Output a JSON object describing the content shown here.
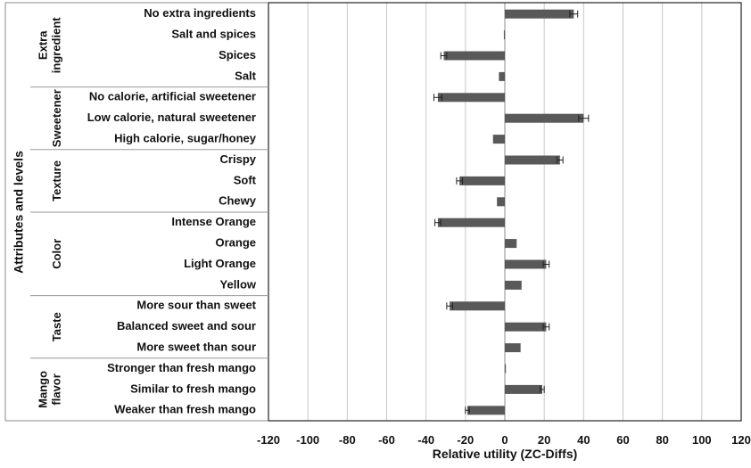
{
  "chart_data": {
    "type": "bar",
    "orientation": "horizontal",
    "xlabel": "Relative utility (ZC-Diffs)",
    "ylabel": "Attributes and levels",
    "xlim": [
      -120,
      120
    ],
    "xticks": [
      -120,
      -100,
      -80,
      -60,
      -40,
      -20,
      0,
      20,
      40,
      60,
      80,
      100,
      120
    ],
    "grid": true,
    "legend": "none",
    "bar_color": "#595959",
    "groups": [
      {
        "name": [
          "Extra",
          "ingredient"
        ],
        "levels": [
          {
            "label": "No extra ingredients",
            "value": 35,
            "err": 2
          },
          {
            "label": "Salt and spices",
            "value": -0.5,
            "err": 0
          },
          {
            "label": "Spices",
            "value": -31,
            "err": 1.5
          },
          {
            "label": "Salt",
            "value": -3,
            "err": 0
          }
        ]
      },
      {
        "name": [
          "Sweetener"
        ],
        "levels": [
          {
            "label": "No calorie, artificial sweetener",
            "value": -34,
            "err": 2
          },
          {
            "label": "Low calorie, natural sweetener",
            "value": 40,
            "err": 2.5
          },
          {
            "label": "High calorie, sugar/honey",
            "value": -6,
            "err": 0
          }
        ]
      },
      {
        "name": [
          "Texture"
        ],
        "levels": [
          {
            "label": "Crispy",
            "value": 28,
            "err": 1.5
          },
          {
            "label": "Soft",
            "value": -23,
            "err": 1.5
          },
          {
            "label": "Chewy",
            "value": -4,
            "err": 0
          }
        ]
      },
      {
        "name": [
          "Color"
        ],
        "levels": [
          {
            "label": "Intense Orange",
            "value": -34,
            "err": 1.5
          },
          {
            "label": "Orange",
            "value": 6,
            "err": 0
          },
          {
            "label": "Light Orange",
            "value": 21,
            "err": 1.5
          },
          {
            "label": "Yellow",
            "value": 8.5,
            "err": 0
          }
        ]
      },
      {
        "name": [
          "Taste"
        ],
        "levels": [
          {
            "label": "More sour than sweet",
            "value": -28,
            "err": 1.5
          },
          {
            "label": "Balanced sweet and sour",
            "value": 21,
            "err": 1.5
          },
          {
            "label": "More sweet than sour",
            "value": 8,
            "err": 0
          }
        ]
      },
      {
        "name": [
          "Mango",
          "flavor"
        ],
        "levels": [
          {
            "label": "Stronger than fresh mango",
            "value": 0.5,
            "err": 0
          },
          {
            "label": "Similar to fresh mango",
            "value": 19,
            "err": 1
          },
          {
            "label": "Weaker than fresh mango",
            "value": -19,
            "err": 1
          }
        ]
      }
    ]
  }
}
